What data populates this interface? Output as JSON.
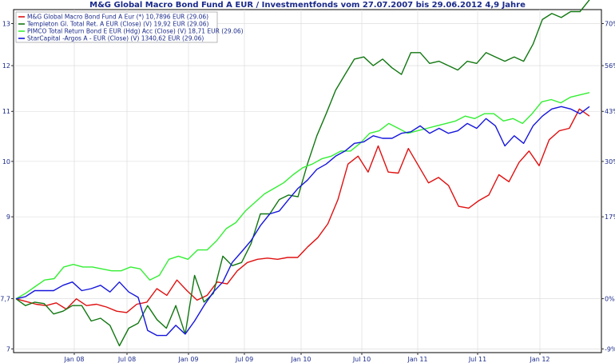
{
  "chart_data": {
    "type": "line",
    "title": "M&G Global Macro Bond Fund A EUR / Investmentfonds vom 27.07.2007 bis 29.06.2012 4,9 Jahre",
    "x_labels": [
      "Jan 08",
      "Jul 08",
      "Jan 09",
      "Jul 09",
      "Jan 10",
      "Jul 10",
      "Jan 11",
      "Jul 11",
      "Jan 12"
    ],
    "left_axis": {
      "ticks": [
        "7",
        "7,7",
        "9",
        "10",
        "11",
        "12",
        "13"
      ],
      "scale": "log"
    },
    "right_axis": {
      "ticks": [
        "-9%",
        "0%",
        "17%",
        "30%",
        "43%",
        "56%",
        "70%"
      ],
      "base": 7.7
    },
    "ylim": [
      6.95,
      13.35
    ],
    "xlim": [
      0,
      57
    ],
    "grid": true,
    "legend_position": "top-left",
    "series": [
      {
        "name": "M&G Global Macro Bond Fund A Eur (*) 10,7896 EUR (29.06)",
        "color": "#e01010",
        "values": [
          7.7,
          7.66,
          7.62,
          7.6,
          7.64,
          7.55,
          7.7,
          7.6,
          7.62,
          7.58,
          7.52,
          7.5,
          7.62,
          7.65,
          7.85,
          7.75,
          7.98,
          7.82,
          7.68,
          7.75,
          7.95,
          7.92,
          8.12,
          8.25,
          8.3,
          8.32,
          8.3,
          8.33,
          8.33,
          8.5,
          8.65,
          8.88,
          9.3,
          9.95,
          10.1,
          9.8,
          10.3,
          9.8,
          9.78,
          10.25,
          9.92,
          9.6,
          9.7,
          9.55,
          9.18,
          9.15,
          9.28,
          9.38,
          9.75,
          9.62,
          9.98,
          10.2,
          9.92,
          10.42,
          10.6,
          10.65,
          11.05,
          10.9
        ]
      },
      {
        "name": "Templeton Gl. Total Ret. A EUR (Close) (V) 19,92 EUR (29.06)",
        "color": "#117711",
        "values": [
          7.7,
          7.6,
          7.65,
          7.63,
          7.48,
          7.52,
          7.6,
          7.6,
          7.38,
          7.42,
          7.32,
          7.04,
          7.28,
          7.35,
          7.6,
          7.4,
          7.28,
          7.6,
          7.2,
          8.05,
          7.65,
          7.78,
          8.35,
          8.2,
          8.25,
          8.55,
          9.05,
          9.05,
          9.3,
          9.38,
          9.35,
          9.95,
          10.5,
          10.95,
          11.45,
          11.8,
          12.15,
          12.2,
          12.0,
          12.15,
          11.95,
          11.8,
          12.3,
          12.3,
          12.05,
          12.1,
          12.0,
          11.9,
          12.1,
          12.05,
          12.3,
          12.2,
          12.1,
          12.2,
          12.1,
          12.5,
          13.1,
          13.25,
          13.15,
          13.3,
          13.3,
          13.6
        ]
      },
      {
        "name": "PIMCO Total Return Bond E EUR (Hdg) Acc (Close) (V) 18,71 EUR (29.06)",
        "color": "#33ee33",
        "values": [
          7.7,
          7.78,
          7.88,
          7.98,
          8.0,
          8.18,
          8.22,
          8.18,
          8.18,
          8.15,
          8.12,
          8.12,
          8.18,
          8.15,
          7.98,
          8.05,
          8.3,
          8.35,
          8.3,
          8.45,
          8.45,
          8.6,
          8.8,
          8.9,
          9.1,
          9.25,
          9.4,
          9.5,
          9.6,
          9.75,
          9.88,
          9.95,
          10.05,
          10.1,
          10.2,
          10.2,
          10.35,
          10.55,
          10.6,
          10.75,
          10.65,
          10.55,
          10.6,
          10.65,
          10.7,
          10.75,
          10.8,
          10.9,
          10.85,
          10.95,
          10.95,
          10.8,
          10.85,
          10.75,
          10.95,
          11.2,
          11.25,
          11.18,
          11.3,
          11.35,
          11.4
        ]
      },
      {
        "name": "StarCapital -Argos A - EUR (Close) (V) 1340,62 EUR (29.06)",
        "color": "#1515dd",
        "values": [
          7.7,
          7.73,
          7.82,
          7.82,
          7.82,
          7.9,
          7.95,
          7.82,
          7.85,
          7.9,
          7.8,
          7.95,
          7.8,
          7.72,
          7.25,
          7.18,
          7.18,
          7.32,
          7.2,
          7.38,
          7.6,
          7.8,
          7.95,
          8.25,
          8.42,
          8.6,
          8.85,
          9.05,
          9.1,
          9.3,
          9.5,
          9.65,
          9.85,
          9.95,
          10.1,
          10.2,
          10.35,
          10.38,
          10.5,
          10.45,
          10.45,
          10.55,
          10.58,
          10.7,
          10.55,
          10.65,
          10.55,
          10.6,
          10.75,
          10.65,
          10.85,
          10.7,
          10.3,
          10.5,
          10.35,
          10.7,
          10.9,
          11.05,
          11.1,
          11.05,
          10.95,
          11.1
        ]
      }
    ]
  }
}
